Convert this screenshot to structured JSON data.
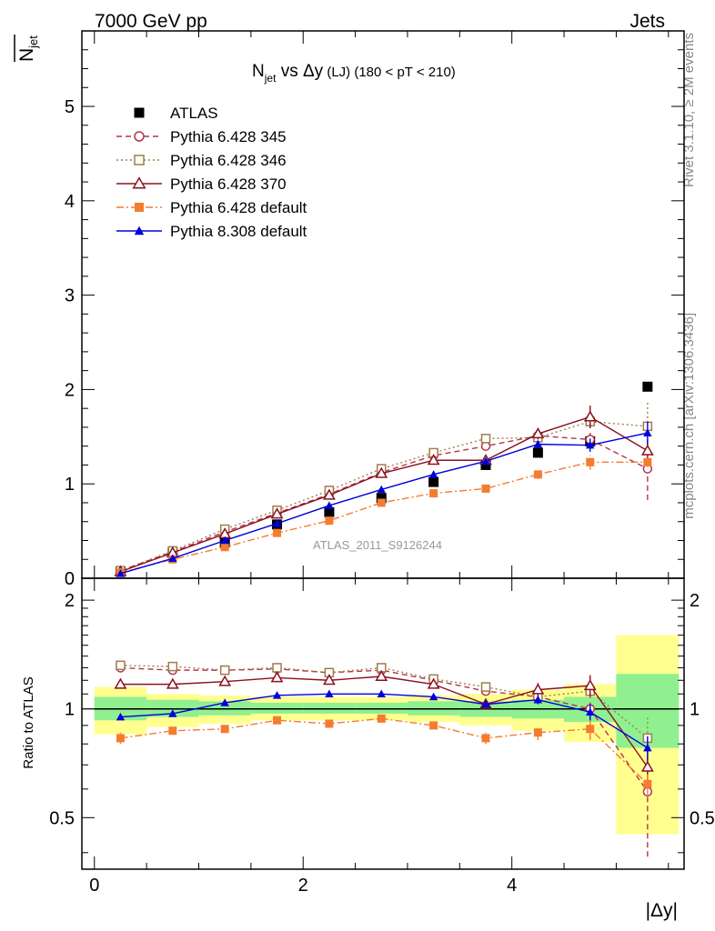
{
  "header": {
    "left": "7000 GeV pp",
    "right": "Jets"
  },
  "side": {
    "rivet": "Rivet 3.1.10, ≥ 2M events",
    "mcplots": "mcplots.cern.ch [arXiv:1306.3436]"
  },
  "chart_data": [
    {
      "type": "scatter",
      "panel": "main",
      "title": "N_jet vs Δy (LJ) (180 < pT < 210)",
      "title_parts": {
        "n": "N",
        "sub": "jet",
        "vs": " vs Δy",
        "lj": " (LJ)",
        "range": " (180 < pT < 210)"
      },
      "ylabel": {
        "main": "N",
        "sub": "jet"
      },
      "watermark": "ATLAS_2011_S9126244",
      "xlim": [
        -0.12,
        5.65
      ],
      "ylim": [
        0,
        5.8
      ],
      "yticks": [
        0,
        1,
        2,
        3,
        4,
        5
      ],
      "ytick_labels": [
        "0",
        "1",
        "2",
        "3",
        "4",
        "5"
      ],
      "legend_position": "top-left",
      "x": [
        0.25,
        0.75,
        1.25,
        1.75,
        2.25,
        2.75,
        3.25,
        3.75,
        4.25,
        4.75,
        5.3
      ],
      "series": [
        {
          "name": "ATLAS",
          "color": "#000000",
          "marker": "filled-square",
          "line": "none",
          "values": [
            0.07,
            0.27,
            0.38,
            0.57,
            0.7,
            0.85,
            1.02,
            1.2,
            1.33,
            1.45,
            2.03
          ]
        },
        {
          "name": "Pythia 6.428 345",
          "color": "#b5334b",
          "marker": "open-circle",
          "line": "dashed",
          "values": [
            0.08,
            0.28,
            0.49,
            0.69,
            0.89,
            1.12,
            1.3,
            1.4,
            1.51,
            1.47,
            1.16
          ],
          "err": [
            0,
            0,
            0,
            0,
            0,
            0,
            0,
            0,
            0.05,
            0.07,
            0.33
          ]
        },
        {
          "name": "Pythia 6.428 346",
          "color": "#a07c4c",
          "marker": "open-square",
          "line": "dotted",
          "values": [
            0.08,
            0.29,
            0.52,
            0.72,
            0.93,
            1.16,
            1.33,
            1.48,
            1.49,
            1.66,
            1.61
          ],
          "err": [
            0,
            0,
            0,
            0,
            0,
            0,
            0,
            0,
            0.05,
            0.07,
            0.25
          ]
        },
        {
          "name": "Pythia 6.428 370",
          "color": "#8b1020",
          "marker": "open-triangle",
          "line": "solid",
          "values": [
            0.07,
            0.27,
            0.47,
            0.68,
            0.88,
            1.11,
            1.25,
            1.25,
            1.53,
            1.71,
            1.35
          ],
          "err": [
            0,
            0,
            0,
            0,
            0,
            0,
            0,
            0,
            0.06,
            0.12,
            0.08
          ]
        },
        {
          "name": "Pythia 6.428 default",
          "color": "#f47c30",
          "marker": "filled-square",
          "line": "dashdot",
          "values": [
            0.06,
            0.2,
            0.33,
            0.48,
            0.61,
            0.8,
            0.9,
            0.95,
            1.1,
            1.23,
            1.23
          ],
          "err": [
            0,
            0,
            0,
            0,
            0,
            0,
            0,
            0,
            0.05,
            0.08,
            0.05
          ]
        },
        {
          "name": "Pythia 8.308 default",
          "color": "#0000dd",
          "marker": "filled-triangle",
          "line": "solid",
          "values": [
            0.05,
            0.21,
            0.4,
            0.58,
            0.77,
            0.94,
            1.1,
            1.24,
            1.42,
            1.41,
            1.54
          ],
          "err": [
            0,
            0,
            0,
            0,
            0,
            0,
            0,
            0,
            0.04,
            0.07,
            0.12
          ]
        }
      ]
    },
    {
      "type": "scatter",
      "panel": "ratio",
      "ylabel": "Ratio to ATLAS",
      "xlabel": "|Δy|",
      "xlim": [
        -0.12,
        5.65
      ],
      "ylim": [
        0.36,
        2.3
      ],
      "log_y": true,
      "xticks": [
        0,
        2,
        4
      ],
      "xtick_labels": [
        "0",
        "2",
        "4"
      ],
      "yticks": [
        0.5,
        1,
        2
      ],
      "ytick_labels": [
        "0.5",
        "1",
        "2"
      ],
      "reference_line": 1,
      "bands": {
        "x_edges": [
          0,
          0.5,
          1.0,
          1.5,
          2.0,
          2.5,
          3.0,
          3.5,
          4.0,
          4.5,
          5.0,
          5.6
        ],
        "inner": {
          "color": "#90f090",
          "low": [
            0.93,
            0.95,
            0.96,
            0.97,
            0.97,
            0.97,
            0.96,
            0.95,
            0.94,
            0.92,
            0.78
          ],
          "high": [
            1.08,
            1.06,
            1.05,
            1.04,
            1.04,
            1.04,
            1.05,
            1.05,
            1.06,
            1.08,
            1.25
          ]
        },
        "outer": {
          "color": "#ffff90",
          "low": [
            0.85,
            0.89,
            0.91,
            0.93,
            0.93,
            0.93,
            0.92,
            0.9,
            0.87,
            0.81,
            0.45
          ],
          "high": [
            1.15,
            1.1,
            1.09,
            1.08,
            1.08,
            1.08,
            1.09,
            1.1,
            1.13,
            1.17,
            1.6
          ]
        }
      },
      "x": [
        0.25,
        0.75,
        1.25,
        1.75,
        2.25,
        2.75,
        3.25,
        3.75,
        4.25,
        4.75,
        5.3
      ],
      "series": [
        {
          "name": "Pythia 6.428 345",
          "color": "#b5334b",
          "marker": "open-circle",
          "line": "dashed",
          "values": [
            1.3,
            1.28,
            1.28,
            1.29,
            1.26,
            1.28,
            1.2,
            1.12,
            1.08,
            1.0,
            0.59
          ],
          "err": [
            0,
            0,
            0,
            0,
            0,
            0,
            0,
            0,
            0.04,
            0.05,
            0.2
          ]
        },
        {
          "name": "Pythia 6.428 346",
          "color": "#a07c4c",
          "marker": "open-square",
          "line": "dotted",
          "values": [
            1.32,
            1.31,
            1.28,
            1.3,
            1.26,
            1.3,
            1.21,
            1.15,
            1.08,
            1.12,
            0.83
          ],
          "err": [
            0,
            0,
            0,
            0,
            0,
            0,
            0,
            0,
            0.04,
            0.05,
            0.13
          ]
        },
        {
          "name": "Pythia 6.428 370",
          "color": "#8b1020",
          "marker": "open-triangle",
          "line": "solid",
          "values": [
            1.17,
            1.17,
            1.19,
            1.22,
            1.2,
            1.23,
            1.17,
            1.03,
            1.13,
            1.16,
            0.69
          ],
          "err": [
            0,
            0,
            0,
            0,
            0,
            0,
            0,
            0,
            0.05,
            0.08,
            0.05
          ]
        },
        {
          "name": "Pythia 6.428 default",
          "color": "#f47c30",
          "marker": "filled-square",
          "line": "dashdot",
          "values": [
            0.83,
            0.87,
            0.88,
            0.93,
            0.91,
            0.94,
            0.9,
            0.83,
            0.86,
            0.88,
            0.62
          ],
          "err": [
            0.03,
            0,
            0,
            0,
            0,
            0,
            0,
            0.03,
            0.04,
            0.06,
            0.04
          ]
        },
        {
          "name": "Pythia 8.308 default",
          "color": "#0000dd",
          "marker": "filled-triangle",
          "line": "solid",
          "values": [
            0.95,
            0.97,
            1.04,
            1.09,
            1.1,
            1.1,
            1.08,
            1.03,
            1.06,
            0.98,
            0.78
          ],
          "err": [
            0,
            0,
            0,
            0,
            0,
            0,
            0,
            0,
            0.03,
            0.05,
            0.06
          ]
        }
      ]
    }
  ]
}
